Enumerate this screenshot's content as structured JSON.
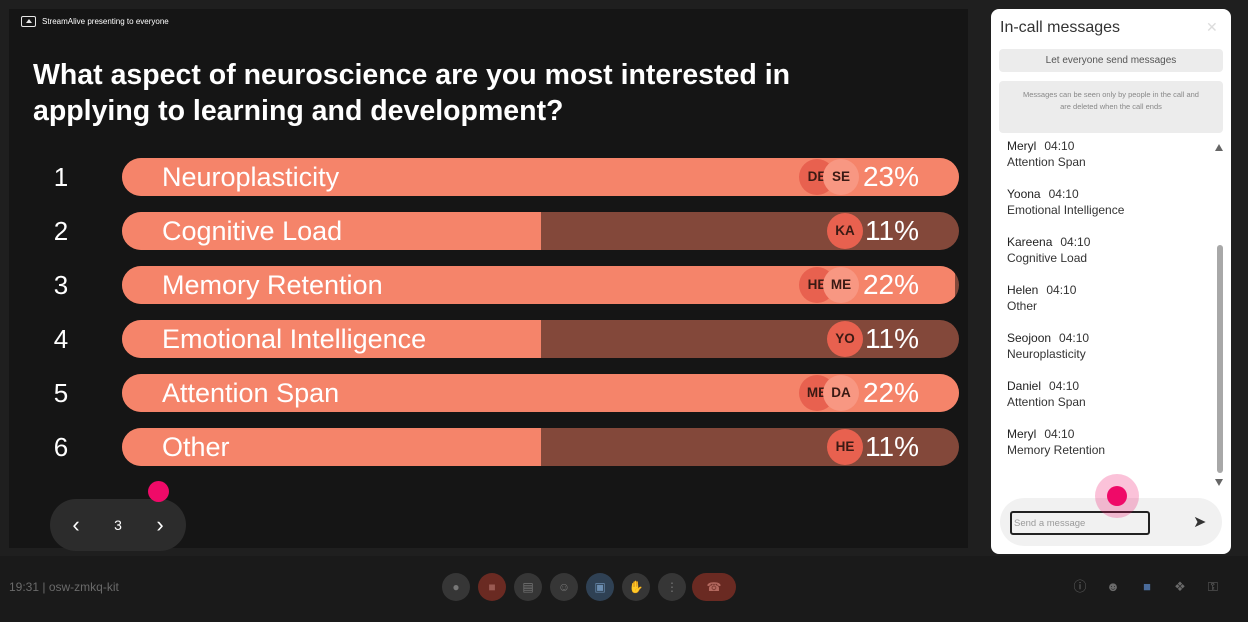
{
  "presenting_text": "StreamAlive presenting to everyone",
  "question": "What aspect of neuroscience are you most interested in applying to learning and development?",
  "poll": [
    {
      "num": "1",
      "label": "Neuroplasticity",
      "percent": "23%",
      "fill": 1.0,
      "avatars": [
        "DE",
        "SE"
      ]
    },
    {
      "num": "2",
      "label": "Cognitive Load",
      "percent": "11%",
      "fill": 0.5,
      "avatars": [
        "KA"
      ]
    },
    {
      "num": "3",
      "label": "Memory Retention",
      "percent": "22%",
      "fill": 0.995,
      "avatars": [
        "HE",
        "ME"
      ]
    },
    {
      "num": "4",
      "label": "Emotional Intelligence",
      "percent": "11%",
      "fill": 0.5,
      "avatars": [
        "YO"
      ]
    },
    {
      "num": "5",
      "label": "Attention Span",
      "percent": "22%",
      "fill": 1.0,
      "avatars": [
        "ME",
        "DA"
      ]
    },
    {
      "num": "6",
      "label": "Other",
      "percent": "11%",
      "fill": 0.5,
      "avatars": [
        "HE"
      ]
    }
  ],
  "pager": {
    "prev_icon": "chevron-left-icon",
    "page": "3",
    "next_icon": "chevron-right-icon"
  },
  "panel": {
    "title": "In-call messages",
    "close_icon": "close-icon",
    "send_toggle": "Let everyone send messages",
    "info": "Messages can be seen only by people in the call and are deleted when the call ends",
    "messages": [
      {
        "name": "Meryl",
        "time": "04:10",
        "text": "Attention Span"
      },
      {
        "name": "Yoona",
        "time": "04:10",
        "text": "Emotional Intelligence"
      },
      {
        "name": "Kareena",
        "time": "04:10",
        "text": "Cognitive Load"
      },
      {
        "name": "Helen",
        "time": "04:10",
        "text": "Other"
      },
      {
        "name": "Seojoon",
        "time": "04:10",
        "text": "Neuroplasticity"
      },
      {
        "name": "Daniel",
        "time": "04:10",
        "text": "Attention Span"
      },
      {
        "name": "Meryl",
        "time": "04:10",
        "text": "Memory Retention"
      }
    ],
    "composer_placeholder": "Send a message",
    "send_icon": "send-icon"
  },
  "bottombar": {
    "meeting_info": "19:31  |  osw-zmkq-kit"
  },
  "colors": {
    "bar_fill": "#f5846a",
    "bar_track": "#83483a",
    "accent_dot": "#ef0a68"
  }
}
